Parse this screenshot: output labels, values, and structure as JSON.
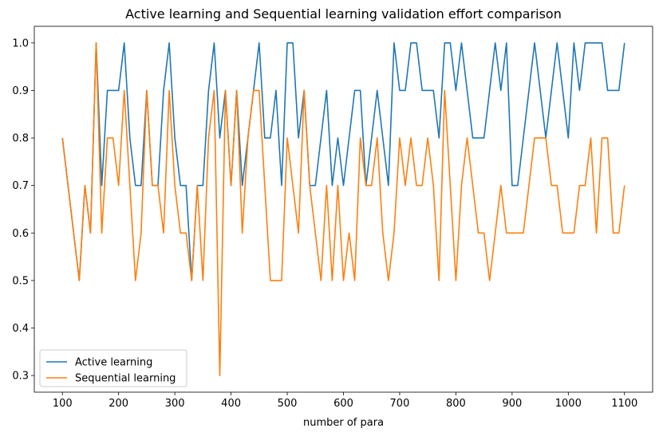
{
  "chart_data": {
    "type": "line",
    "title": "Active learning and Sequential learning validation effort comparison",
    "xlabel": "number of para",
    "ylabel": "",
    "xlim": [
      50,
      1150
    ],
    "ylim": [
      0.265,
      1.035
    ],
    "xticks": [
      100,
      200,
      300,
      400,
      500,
      600,
      700,
      800,
      900,
      1000,
      1100
    ],
    "yticks": [
      0.3,
      0.4,
      0.5,
      0.6,
      0.7,
      0.8,
      0.9,
      1.0
    ],
    "ytick_labels": [
      "0.3",
      "0.4",
      "0.5",
      "0.6",
      "0.7",
      "0.8",
      "0.9",
      "1.0"
    ],
    "legend_position": "lower-left",
    "x": [
      100,
      110,
      120,
      130,
      140,
      150,
      160,
      170,
      180,
      190,
      200,
      210,
      220,
      230,
      240,
      250,
      260,
      270,
      280,
      290,
      300,
      310,
      320,
      330,
      340,
      350,
      360,
      370,
      380,
      390,
      400,
      410,
      420,
      430,
      440,
      450,
      460,
      470,
      480,
      490,
      500,
      510,
      520,
      530,
      540,
      550,
      560,
      570,
      580,
      590,
      600,
      610,
      620,
      630,
      640,
      650,
      660,
      670,
      680,
      690,
      700,
      710,
      720,
      730,
      740,
      750,
      760,
      770,
      780,
      790,
      800,
      810,
      820,
      830,
      840,
      850,
      860,
      870,
      880,
      890,
      900,
      910,
      920,
      930,
      940,
      950,
      960,
      970,
      980,
      990,
      1000,
      1010,
      1020,
      1030,
      1040,
      1050,
      1060,
      1070,
      1080,
      1090,
      1100
    ],
    "series": [
      {
        "name": "Active learning",
        "color": "#1f77b4",
        "values": [
          0.8,
          0.7,
          0.6,
          0.5,
          0.7,
          0.6,
          1.0,
          0.7,
          0.9,
          0.9,
          0.9,
          1.0,
          0.8,
          0.7,
          0.7,
          0.9,
          0.7,
          0.7,
          0.9,
          1.0,
          0.8,
          0.7,
          0.7,
          0.5,
          0.7,
          0.7,
          0.9,
          1.0,
          0.8,
          0.9,
          0.7,
          0.9,
          0.7,
          0.8,
          0.9,
          1.0,
          0.8,
          0.8,
          0.9,
          0.7,
          1.0,
          1.0,
          0.8,
          0.9,
          0.7,
          0.7,
          0.8,
          0.9,
          0.7,
          0.8,
          0.7,
          0.8,
          0.9,
          0.9,
          0.7,
          0.8,
          0.9,
          0.8,
          0.7,
          1.0,
          0.9,
          0.9,
          1.0,
          1.0,
          0.9,
          0.9,
          0.9,
          0.8,
          1.0,
          1.0,
          0.9,
          1.0,
          0.9,
          0.8,
          0.8,
          0.8,
          0.9,
          1.0,
          0.9,
          1.0,
          0.7,
          0.7,
          0.8,
          0.9,
          1.0,
          0.9,
          0.8,
          0.9,
          1.0,
          0.9,
          0.8,
          1.0,
          0.9,
          1.0,
          1.0,
          1.0,
          1.0,
          0.9,
          0.9,
          0.9,
          1.0
        ]
      },
      {
        "name": "Sequential learning",
        "color": "#ff7f0e",
        "values": [
          0.8,
          0.7,
          0.6,
          0.5,
          0.7,
          0.6,
          1.0,
          0.6,
          0.8,
          0.8,
          0.7,
          0.9,
          0.7,
          0.5,
          0.6,
          0.9,
          0.7,
          0.7,
          0.6,
          0.9,
          0.7,
          0.6,
          0.6,
          0.5,
          0.7,
          0.5,
          0.8,
          0.9,
          0.3,
          0.9,
          0.7,
          0.9,
          0.6,
          0.8,
          0.9,
          0.9,
          0.7,
          0.5,
          0.5,
          0.5,
          0.8,
          0.7,
          0.6,
          0.9,
          0.7,
          0.6,
          0.5,
          0.7,
          0.5,
          0.7,
          0.5,
          0.6,
          0.5,
          0.8,
          0.7,
          0.7,
          0.8,
          0.6,
          0.5,
          0.6,
          0.8,
          0.7,
          0.8,
          0.7,
          0.7,
          0.8,
          0.7,
          0.5,
          0.9,
          0.7,
          0.5,
          0.7,
          0.8,
          0.7,
          0.6,
          0.6,
          0.5,
          0.6,
          0.7,
          0.6,
          0.6,
          0.6,
          0.6,
          0.7,
          0.8,
          0.8,
          0.8,
          0.7,
          0.7,
          0.6,
          0.6,
          0.6,
          0.7,
          0.7,
          0.8,
          0.6,
          0.8,
          0.8,
          0.6,
          0.6,
          0.7
        ]
      }
    ]
  }
}
